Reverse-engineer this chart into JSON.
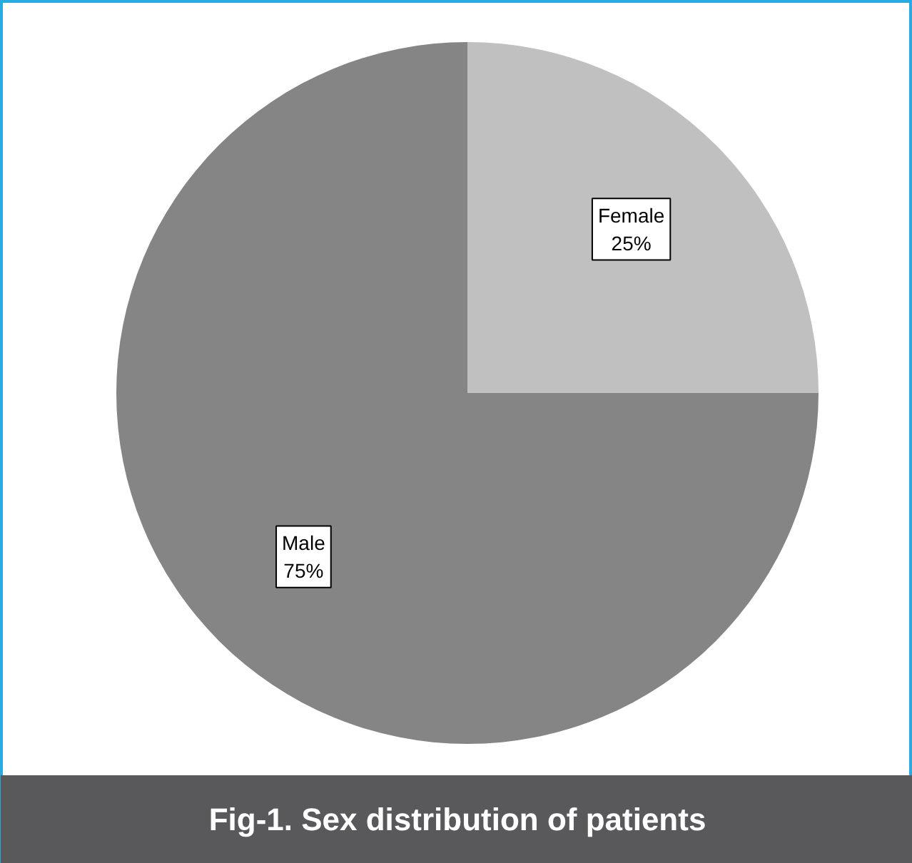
{
  "chart_data": {
    "type": "pie",
    "title": "Fig-1. Sex distribution of patients",
    "categories": [
      "Female",
      "Male"
    ],
    "values": [
      25,
      75
    ],
    "colors": [
      "#c0c0c0",
      "#858585"
    ],
    "value_labels": [
      "25%",
      "75%"
    ]
  }
}
